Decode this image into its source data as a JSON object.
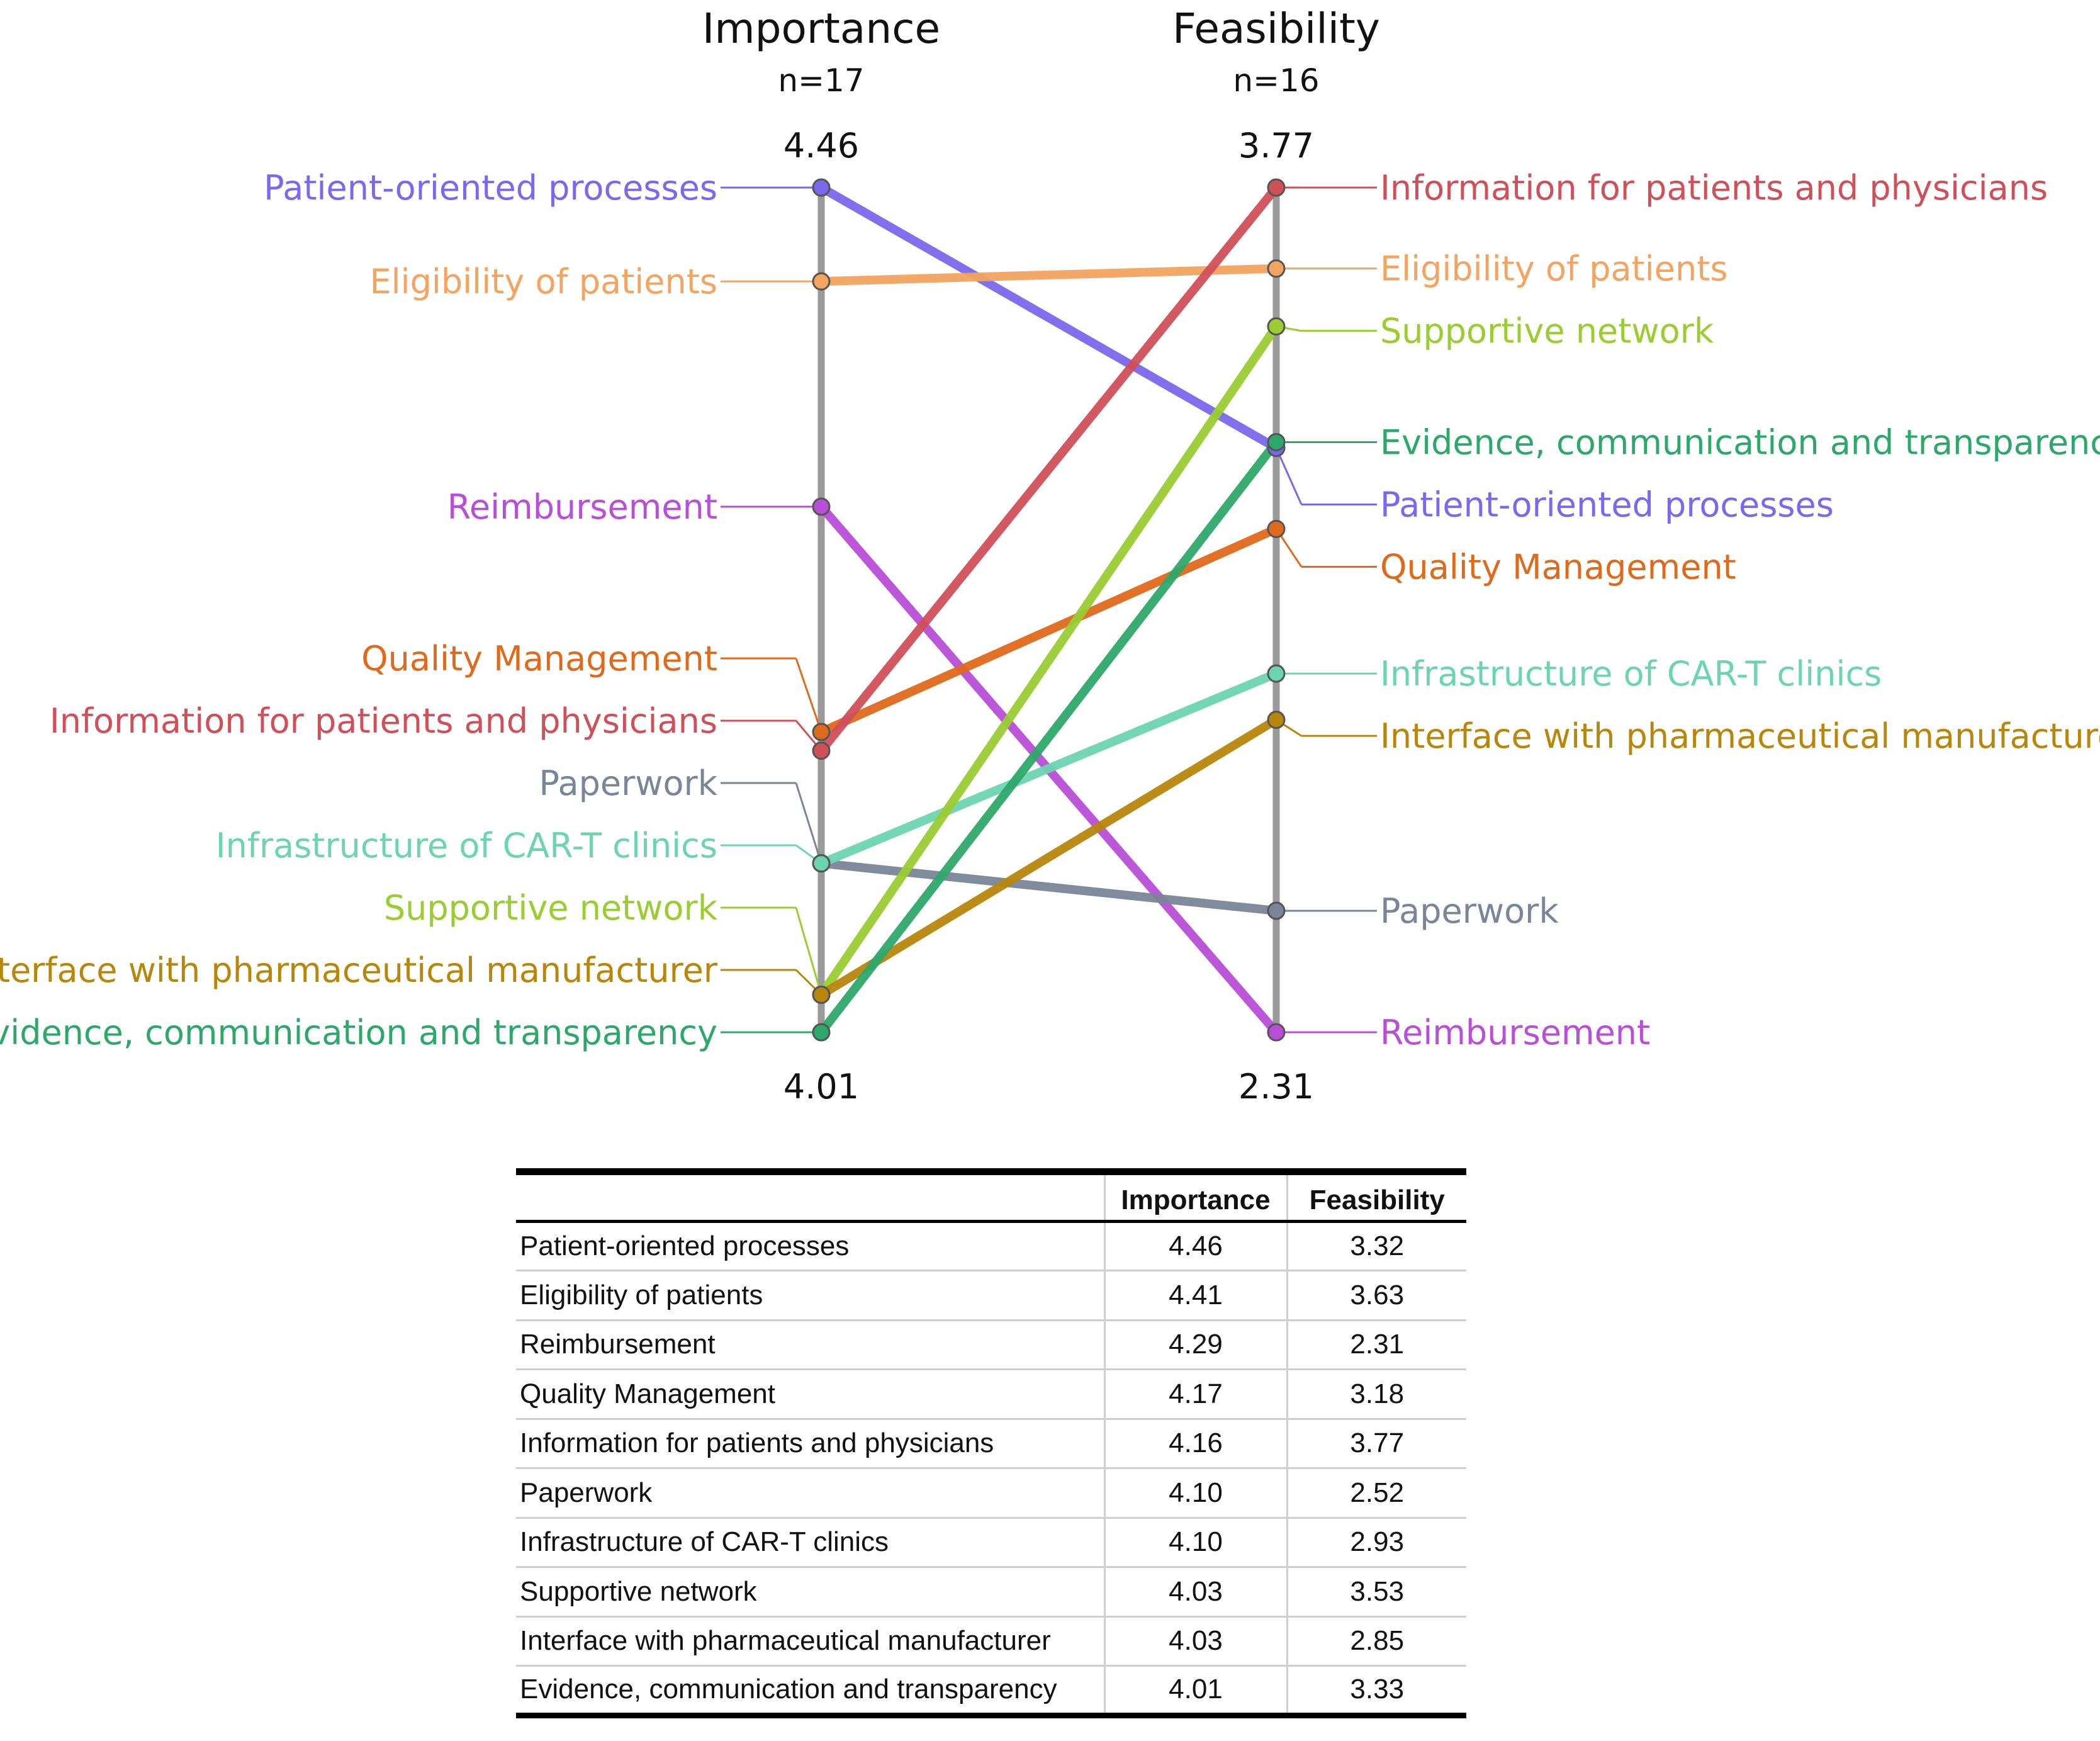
{
  "chart_data": {
    "type": "line",
    "subtype": "slope",
    "columns": [
      {
        "title": "Importance",
        "n_label": "n=17",
        "max_label": "4.46",
        "min_label": "4.01",
        "range": [
          4.01,
          4.46
        ]
      },
      {
        "title": "Feasibility",
        "n_label": "n=16",
        "max_label": "3.77",
        "min_label": "2.31",
        "range": [
          2.31,
          3.77
        ]
      }
    ],
    "series": [
      {
        "name": "Patient-oriented processes",
        "importance": 4.46,
        "feasibility": 3.32,
        "color": "#7B68EE"
      },
      {
        "name": "Eligibility of patients",
        "importance": 4.41,
        "feasibility": 3.63,
        "color": "#F4A460"
      },
      {
        "name": "Reimbursement",
        "importance": 4.29,
        "feasibility": 2.31,
        "color": "#B84FD6"
      },
      {
        "name": "Quality Management",
        "importance": 4.17,
        "feasibility": 3.18,
        "color": "#E06A1B"
      },
      {
        "name": "Information for patients and physicians",
        "importance": 4.16,
        "feasibility": 3.77,
        "color": "#D0505A"
      },
      {
        "name": "Paperwork",
        "importance": 4.1,
        "feasibility": 2.52,
        "color": "#7A8698"
      },
      {
        "name": "Infrastructure of CAR-T clinics",
        "importance": 4.1,
        "feasibility": 2.93,
        "color": "#6CD4B0"
      },
      {
        "name": "Supportive network",
        "importance": 4.03,
        "feasibility": 3.53,
        "color": "#9ACD32"
      },
      {
        "name": "Interface with pharmaceutical manufacturer",
        "importance": 4.03,
        "feasibility": 2.85,
        "color": "#B8860B"
      },
      {
        "name": "Evidence, communication and transparency",
        "importance": 4.01,
        "feasibility": 3.33,
        "color": "#2EA86A"
      }
    ]
  },
  "table": {
    "headers": [
      "",
      "Importance",
      "Feasibility"
    ],
    "rows": [
      [
        "Patient-oriented processes",
        "4.46",
        "3.32"
      ],
      [
        "Eligibility of patients",
        "4.41",
        "3.63"
      ],
      [
        "Reimbursement",
        "4.29",
        "2.31"
      ],
      [
        "Quality Management",
        "4.17",
        "3.18"
      ],
      [
        "Information for patients and physicians",
        "4.16",
        "3.77"
      ],
      [
        "Paperwork",
        "4.10",
        "2.52"
      ],
      [
        "Infrastructure of CAR-T clinics",
        "4.10",
        "2.93"
      ],
      [
        "Supportive network",
        "4.03",
        "3.53"
      ],
      [
        "Interface with pharmaceutical manufacturer",
        "4.03",
        "2.85"
      ],
      [
        "Evidence,  communication and transparency",
        "4.01",
        "3.33"
      ]
    ]
  }
}
